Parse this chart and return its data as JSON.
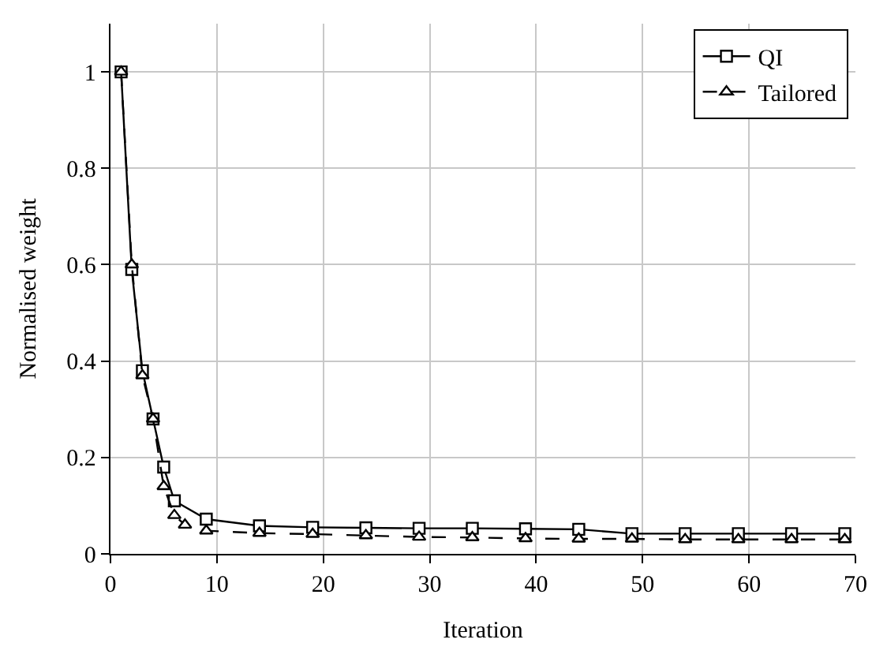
{
  "chart_data": {
    "type": "line",
    "xlabel": "Iteration",
    "ylabel": "Normalised weight",
    "xlim": [
      0,
      70
    ],
    "ylim": [
      0,
      1.1
    ],
    "xticks": [
      0,
      10,
      20,
      30,
      40,
      50,
      60,
      70
    ],
    "yticks": [
      0,
      0.2,
      0.4,
      0.6,
      0.8,
      1
    ],
    "grid": true,
    "legend": "top right",
    "series": [
      {
        "name": "QI",
        "color": "#000000",
        "marker": "square",
        "line_style": "solid",
        "x": [
          1,
          2,
          3,
          4,
          5,
          6,
          9,
          14,
          19,
          24,
          29,
          34,
          39,
          44,
          49,
          54,
          59,
          64,
          69
        ],
        "values": [
          1.0,
          0.59,
          0.38,
          0.28,
          0.18,
          0.11,
          0.072,
          0.058,
          0.055,
          0.054,
          0.053,
          0.053,
          0.052,
          0.051,
          0.042,
          0.042,
          0.042,
          0.042,
          0.042
        ]
      },
      {
        "name": "Tailored",
        "color": "#000000",
        "marker": "triangle",
        "line_style": "dashed",
        "x": [
          1,
          2,
          3,
          4,
          5,
          6,
          7,
          9,
          14,
          19,
          24,
          29,
          34,
          39,
          44,
          49,
          54,
          59,
          64,
          69
        ],
        "values": [
          1.0,
          0.6,
          0.37,
          0.28,
          0.14,
          0.08,
          0.06,
          0.048,
          0.043,
          0.041,
          0.038,
          0.035,
          0.034,
          0.032,
          0.031,
          0.031,
          0.03,
          0.03,
          0.03,
          0.03
        ]
      }
    ]
  }
}
